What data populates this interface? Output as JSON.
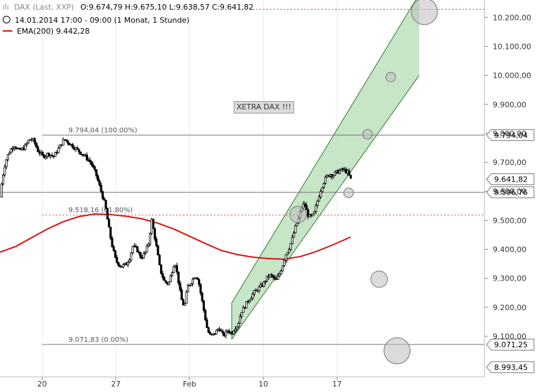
{
  "header": {
    "instrument": "DAX (Last, XXP)",
    "ohlc": "O:9.674,79  H:9.675,10  L:9.638,57  C:9.641,82",
    "period": "14.01.2014 17:00 - 09:00 (1 Monat, 1 Stunde)",
    "ema": "EMA(200)  9.442,28"
  },
  "annotation": {
    "label": "XETRA DAX !!!"
  },
  "colors": {
    "ema": "#dd1111",
    "channel_fill": "#b9dfb9",
    "channel_line": "#2f7a2f",
    "candle": "#000000",
    "axis_text": "#333333",
    "dashed": "#e03030"
  },
  "chart_data": {
    "type": "candlestick",
    "ylim": [
      8960,
      10260
    ],
    "y_ticks": [
      {
        "value": 10200,
        "label": "10.200,00"
      },
      {
        "value": 10100,
        "label": "10.100,00"
      },
      {
        "value": 10000,
        "label": "10.000,00"
      },
      {
        "value": 9900,
        "label": "9.900,00"
      },
      {
        "value": 9800,
        "label": "9.800,00"
      },
      {
        "value": 9700,
        "label": "9.700,00"
      },
      {
        "value": 9600,
        "label": "9.600,00"
      },
      {
        "value": 9500,
        "label": "9.500,00"
      },
      {
        "value": 9400,
        "label": "9.400,00"
      },
      {
        "value": 9300,
        "label": "9.300,00"
      },
      {
        "value": 9200,
        "label": "9.200,00"
      },
      {
        "value": 9100,
        "label": "9.100,00"
      }
    ],
    "x_ticks": [
      {
        "t": 20,
        "label": "20"
      },
      {
        "t": 27,
        "label": "27"
      },
      {
        "t": 34,
        "label": "Feb"
      },
      {
        "t": 41,
        "label": "10"
      },
      {
        "t": 48,
        "label": "17"
      }
    ],
    "price_boxes": [
      {
        "value": 9794.04,
        "label": "9.794,04"
      },
      {
        "value": 9641.82,
        "label": "9.641,82"
      },
      {
        "value": 9596.76,
        "label": "9.596,76"
      },
      {
        "value": 9071.25,
        "label": "9.071,25"
      },
      {
        "value": 8993.45,
        "label": "8.993,45"
      }
    ],
    "fib_levels": [
      {
        "value": 9794.04,
        "label": "9.794,04 (100.00%)",
        "style": "solid"
      },
      {
        "value": 9518.16,
        "label": "9.518,16 (61.80%)",
        "style": "dashed"
      },
      {
        "value": 9071.83,
        "label": "9.071,83 (0.00%)",
        "style": "solid"
      }
    ],
    "horizontal_lines": [
      {
        "value": 9596.76,
        "style": "solid"
      },
      {
        "value": 10228,
        "style": "dashed"
      }
    ],
    "close_path": [
      [
        16.0,
        9580
      ],
      [
        16.2,
        9640
      ],
      [
        16.5,
        9700
      ],
      [
        16.8,
        9730
      ],
      [
        17.3,
        9760
      ],
      [
        17.8,
        9740
      ],
      [
        18.3,
        9750
      ],
      [
        18.8,
        9780
      ],
      [
        19.2,
        9775
      ],
      [
        19.6,
        9740
      ],
      [
        20.1,
        9720
      ],
      [
        20.6,
        9730
      ],
      [
        21.1,
        9720
      ],
      [
        21.6,
        9750
      ],
      [
        22.1,
        9780
      ],
      [
        22.6,
        9765
      ],
      [
        23.1,
        9750
      ],
      [
        23.6,
        9735
      ],
      [
        24.1,
        9720
      ],
      [
        24.6,
        9700
      ],
      [
        25.1,
        9660
      ],
      [
        25.6,
        9600
      ],
      [
        26.0,
        9550
      ],
      [
        26.3,
        9480
      ],
      [
        26.6,
        9420
      ],
      [
        27.0,
        9360
      ],
      [
        27.5,
        9340
      ],
      [
        28.0,
        9350
      ],
      [
        28.3,
        9370
      ],
      [
        28.6,
        9410
      ],
      [
        29.0,
        9400
      ],
      [
        29.4,
        9370
      ],
      [
        29.8,
        9390
      ],
      [
        30.1,
        9420
      ],
      [
        30.4,
        9500
      ],
      [
        30.8,
        9420
      ],
      [
        31.2,
        9330
      ],
      [
        31.6,
        9290
      ],
      [
        32.0,
        9280
      ],
      [
        32.3,
        9320
      ],
      [
        32.6,
        9360
      ],
      [
        32.9,
        9300
      ],
      [
        33.2,
        9230
      ],
      [
        33.5,
        9200
      ],
      [
        33.8,
        9270
      ],
      [
        34.2,
        9290
      ],
      [
        34.5,
        9310
      ],
      [
        34.8,
        9300
      ],
      [
        35.1,
        9240
      ],
      [
        35.4,
        9180
      ],
      [
        35.7,
        9120
      ],
      [
        36.0,
        9100
      ],
      [
        36.4,
        9110
      ],
      [
        36.8,
        9130
      ],
      [
        37.2,
        9100
      ],
      [
        37.6,
        9120
      ],
      [
        38.0,
        9110
      ],
      [
        38.3,
        9130
      ],
      [
        38.6,
        9140
      ],
      [
        38.9,
        9185
      ],
      [
        39.2,
        9200
      ],
      [
        39.5,
        9220
      ],
      [
        39.8,
        9235
      ],
      [
        40.1,
        9250
      ],
      [
        40.4,
        9260
      ],
      [
        40.7,
        9270
      ],
      [
        41.0,
        9280
      ],
      [
        41.3,
        9300
      ],
      [
        41.6,
        9310
      ],
      [
        41.9,
        9305
      ],
      [
        42.2,
        9290
      ],
      [
        42.5,
        9310
      ],
      [
        42.8,
        9340
      ],
      [
        43.1,
        9380
      ],
      [
        43.4,
        9400
      ],
      [
        43.7,
        9430
      ],
      [
        44.0,
        9470
      ],
      [
        44.3,
        9500
      ],
      [
        44.6,
        9540
      ],
      [
        44.9,
        9560
      ],
      [
        45.2,
        9520
      ],
      [
        45.5,
        9510
      ],
      [
        45.8,
        9520
      ],
      [
        46.1,
        9560
      ],
      [
        46.4,
        9600
      ],
      [
        46.7,
        9630
      ],
      [
        47.0,
        9650
      ],
      [
        47.3,
        9660
      ],
      [
        47.6,
        9655
      ],
      [
        47.9,
        9665
      ],
      [
        48.2,
        9670
      ],
      [
        48.6,
        9675
      ],
      [
        49.0,
        9665
      ],
      [
        49.3,
        9641.82
      ]
    ],
    "ema200_path": [
      [
        16.0,
        9390
      ],
      [
        17.5,
        9410
      ],
      [
        19.0,
        9440
      ],
      [
        20.5,
        9470
      ],
      [
        22.0,
        9495
      ],
      [
        23.5,
        9513
      ],
      [
        25.0,
        9522
      ],
      [
        26.5,
        9520
      ],
      [
        28.0,
        9514
      ],
      [
        29.5,
        9505
      ],
      [
        31.0,
        9490
      ],
      [
        32.5,
        9470
      ],
      [
        34.0,
        9445
      ],
      [
        35.5,
        9420
      ],
      [
        37.0,
        9396
      ],
      [
        38.5,
        9382
      ],
      [
        40.0,
        9373
      ],
      [
        41.5,
        9368
      ],
      [
        43.0,
        9366
      ],
      [
        44.5,
        9375
      ],
      [
        46.0,
        9392
      ],
      [
        47.5,
        9414
      ],
      [
        49.3,
        9442.28
      ]
    ],
    "channel": {
      "start": {
        "t": 38.0,
        "low": 9090,
        "high": 9215
      },
      "end": {
        "t": 55.8,
        "low": 10000,
        "high": 10280
      }
    },
    "circles": [
      {
        "t": 56.3,
        "value": 10220,
        "size": "large"
      },
      {
        "t": 53.1,
        "value": 9994,
        "size": "small"
      },
      {
        "t": 50.9,
        "value": 9797,
        "size": "small"
      },
      {
        "t": 49.1,
        "value": 9595,
        "size": "small"
      },
      {
        "t": 44.3,
        "value": 9520,
        "size": "medium"
      },
      {
        "t": 52.0,
        "value": 9297,
        "size": "medium"
      },
      {
        "t": 53.7,
        "value": 9050,
        "size": "large"
      }
    ]
  }
}
